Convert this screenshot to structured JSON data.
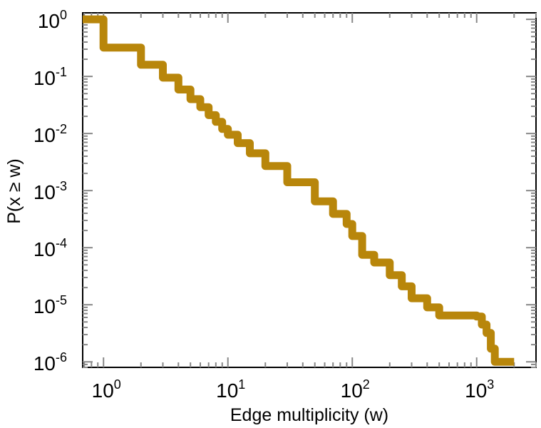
{
  "chart_data": {
    "type": "line",
    "title": "",
    "xlabel": "Edge multiplicity (w)",
    "ylabel": "P(x ≥ w)",
    "xscale": "log",
    "yscale": "log",
    "xlim": [
      0.68,
      3000
    ],
    "ylim": [
      8e-07,
      1.3
    ],
    "grid": false,
    "legend": "none",
    "x_ticks": [
      {
        "base": "10",
        "exp": "0"
      },
      {
        "base": "10",
        "exp": "1"
      },
      {
        "base": "10",
        "exp": "2"
      },
      {
        "base": "10",
        "exp": "3"
      }
    ],
    "y_ticks": [
      {
        "base": "10",
        "exp": "0"
      },
      {
        "base": "10",
        "exp": "-1"
      },
      {
        "base": "10",
        "exp": "-2"
      },
      {
        "base": "10",
        "exp": "-3"
      },
      {
        "base": "10",
        "exp": "-4"
      },
      {
        "base": "10",
        "exp": "-5"
      },
      {
        "base": "10",
        "exp": "-6"
      }
    ],
    "series": [
      {
        "name": "P(x ≥ w)",
        "color": "#b8860b",
        "style": "step",
        "x": [
          0.68,
          1,
          2,
          3,
          4,
          5,
          6,
          7,
          8,
          9,
          10,
          12,
          15,
          20,
          30,
          50,
          70,
          90,
          100,
          120,
          150,
          200,
          250,
          300,
          400,
          500,
          600,
          1000,
          1100,
          1200,
          1300,
          1400,
          2000
        ],
        "y": [
          1.0,
          0.32,
          0.16,
          0.095,
          0.059,
          0.04,
          0.029,
          0.021,
          0.016,
          0.012,
          0.0095,
          0.0068,
          0.0045,
          0.0027,
          0.0014,
          0.00065,
          0.00039,
          0.00026,
          0.00016,
          7.5e-05,
          5.5e-05,
          3.3e-05,
          2.1e-05,
          1.3e-05,
          9e-06,
          6.5e-06,
          6.5e-06,
          6.2e-06,
          4.5e-06,
          3.2e-06,
          1.7e-06,
          1e-06,
          1e-06
        ]
      }
    ]
  }
}
